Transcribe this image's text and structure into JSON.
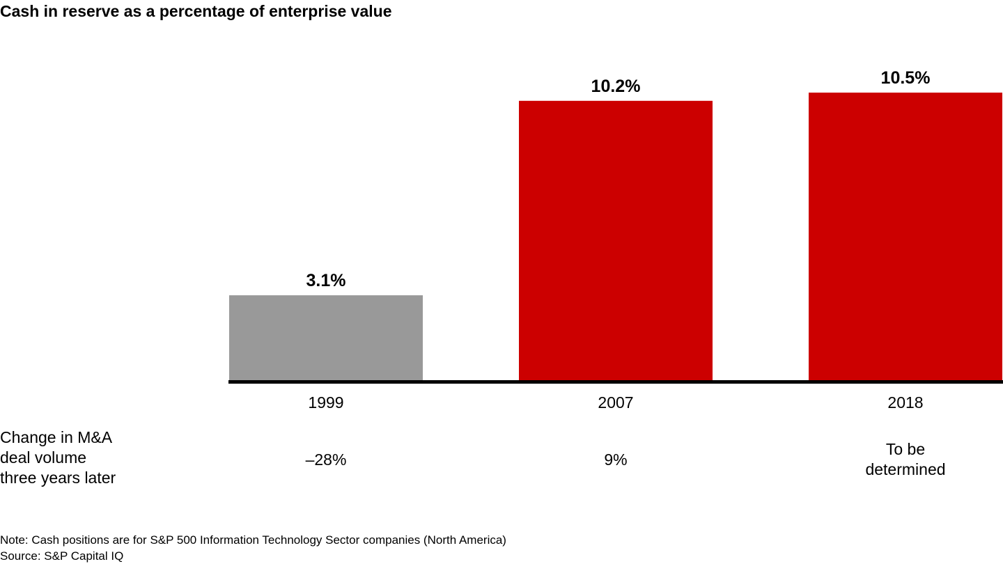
{
  "chart_data": {
    "type": "bar",
    "title": "Cash in reserve as a percentage of enterprise value",
    "categories": [
      "1999",
      "2007",
      "2018"
    ],
    "values": [
      3.1,
      10.2,
      10.5
    ],
    "value_labels": [
      "3.1%",
      "10.2%",
      "10.5%"
    ],
    "colors": [
      "#999999",
      "#cc0000",
      "#cc0000"
    ],
    "ylim": [
      0,
      10.5
    ],
    "grid": false,
    "y_axis_shown": false,
    "secondary_row": {
      "label": [
        "Change in M&A",
        "deal volume",
        "three years later"
      ],
      "values": [
        [
          "–28%"
        ],
        [
          "9%"
        ],
        [
          "To be",
          "determined"
        ]
      ]
    }
  },
  "footer": {
    "note": "Note: Cash positions are for S&P 500 Information Technology Sector companies (North America)",
    "source": "Source: S&P Capital IQ"
  }
}
